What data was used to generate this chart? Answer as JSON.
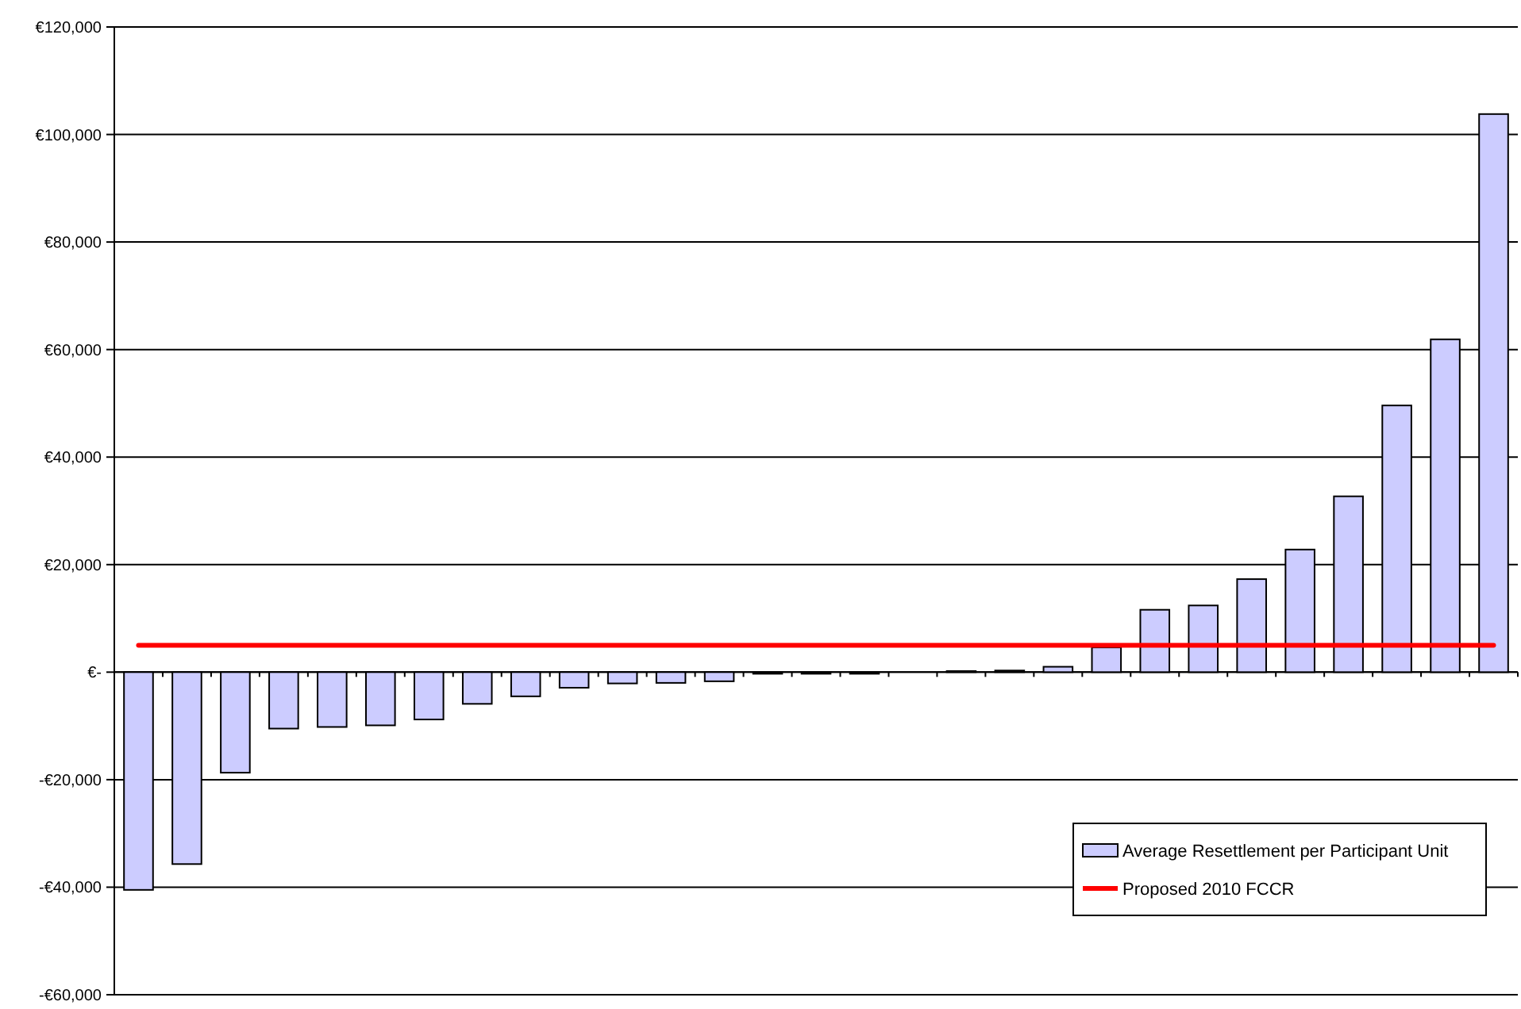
{
  "chart_data": {
    "type": "bar",
    "categories": [
      null,
      null,
      null,
      null,
      null,
      null,
      null,
      null,
      null,
      null,
      null,
      null,
      null,
      null,
      null,
      null,
      null,
      null,
      null,
      null,
      null,
      null,
      null,
      null,
      null,
      null,
      null,
      null,
      null
    ],
    "series": [
      {
        "name": "Average Resettlement per Participant Unit",
        "color": "#ccccff",
        "values": [
          -40500,
          -35700,
          -18700,
          -10500,
          -10200,
          -9900,
          -8800,
          -5900,
          -4500,
          -2900,
          -2100,
          -2000,
          -1700,
          -300,
          -300,
          -300,
          0,
          200,
          300,
          1000,
          4600,
          11600,
          12400,
          17300,
          22800,
          32700,
          49600,
          61900,
          103800
        ]
      },
      {
        "name": "Proposed 2010 FCCR",
        "type": "line",
        "color": "#ff0000",
        "values": [
          5000,
          5000,
          5000,
          5000,
          5000,
          5000,
          5000,
          5000,
          5000,
          5000,
          5000,
          5000,
          5000,
          5000,
          5000,
          5000,
          5000,
          5000,
          5000,
          5000,
          5000,
          5000,
          5000,
          5000,
          5000,
          5000,
          5000,
          5000,
          5000
        ]
      }
    ],
    "ylim": [
      -60000,
      120000
    ],
    "yticks": [
      {
        "value": -60000,
        "label": "-€60,000"
      },
      {
        "value": -40000,
        "label": "-€40,000"
      },
      {
        "value": -20000,
        "label": "-€20,000"
      },
      {
        "value": 0,
        "label": "€-"
      },
      {
        "value": 20000,
        "label": "€20,000"
      },
      {
        "value": 40000,
        "label": "€40,000"
      },
      {
        "value": 60000,
        "label": "€60,000"
      },
      {
        "value": 80000,
        "label": "€80,000"
      },
      {
        "value": 100000,
        "label": "€100,000"
      },
      {
        "value": 120000,
        "label": "€120,000"
      }
    ],
    "grid": "y",
    "legend": "bottom right",
    "marker": "none",
    "line_style": "solid",
    "tick_labels": "y"
  }
}
